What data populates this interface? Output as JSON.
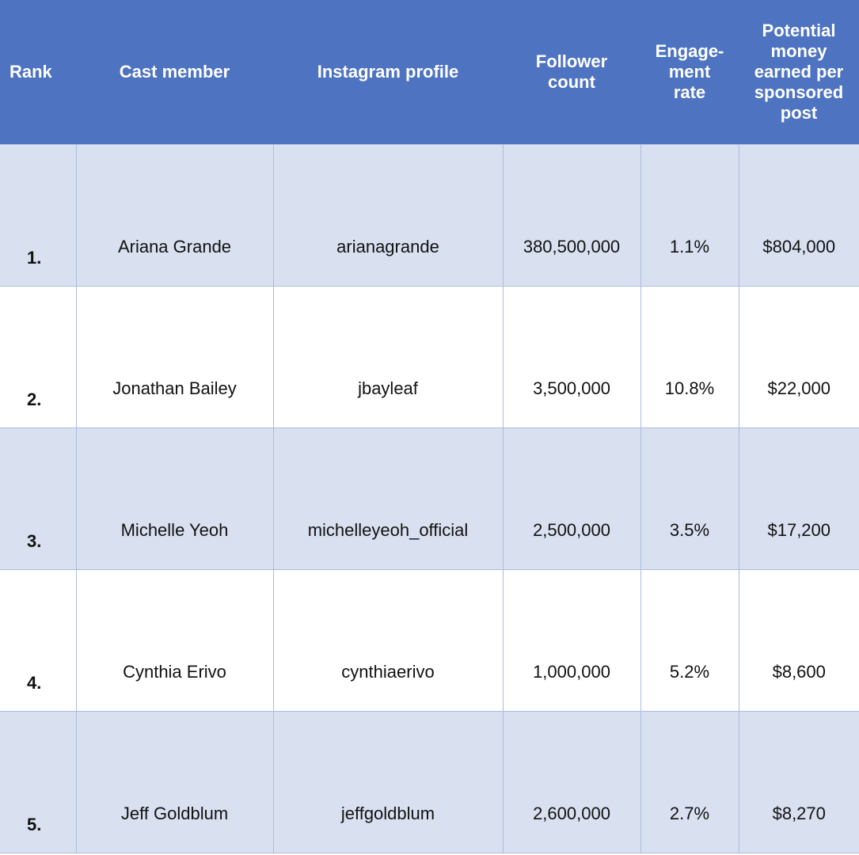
{
  "table": {
    "headers": {
      "rank": "Rank",
      "cast_member": "Cast member",
      "instagram_profile": "Instagram profile",
      "follower_count": [
        "Follower",
        "count"
      ],
      "engagement_rate": [
        "Engage-",
        "ment",
        "rate"
      ],
      "money": [
        "Potential",
        "money",
        "earned per",
        "sponsored",
        "post"
      ]
    },
    "rows": [
      {
        "rank": "1.",
        "cast_member": "Ariana Grande",
        "instagram_profile": "arianagrande",
        "follower_count": "380,500,000",
        "engagement_rate": "1.1%",
        "money": "$804,000"
      },
      {
        "rank": "2.",
        "cast_member": "Jonathan Bailey",
        "instagram_profile": "jbayleaf",
        "follower_count": "3,500,000",
        "engagement_rate": "10.8%",
        "money": "$22,000"
      },
      {
        "rank": "3.",
        "cast_member": "Michelle Yeoh",
        "instagram_profile": "michelleyeoh_official",
        "follower_count": "2,500,000",
        "engagement_rate": "3.5%",
        "money": "$17,200"
      },
      {
        "rank": "4.",
        "cast_member": "Cynthia Erivo",
        "instagram_profile": "cynthiaerivo",
        "follower_count": "1,000,000",
        "engagement_rate": "5.2%",
        "money": "$8,600"
      },
      {
        "rank": "5.",
        "cast_member": "Jeff Goldblum",
        "instagram_profile": "jeffgoldblum",
        "follower_count": "2,600,000",
        "engagement_rate": "2.7%",
        "money": "$8,270"
      }
    ]
  },
  "colors": {
    "header_bg": "#4e73c1",
    "header_text": "#ffffff",
    "band_row": "#d9e1f1",
    "plain_row": "#ffffff",
    "grid_line": "#a9bce3"
  }
}
